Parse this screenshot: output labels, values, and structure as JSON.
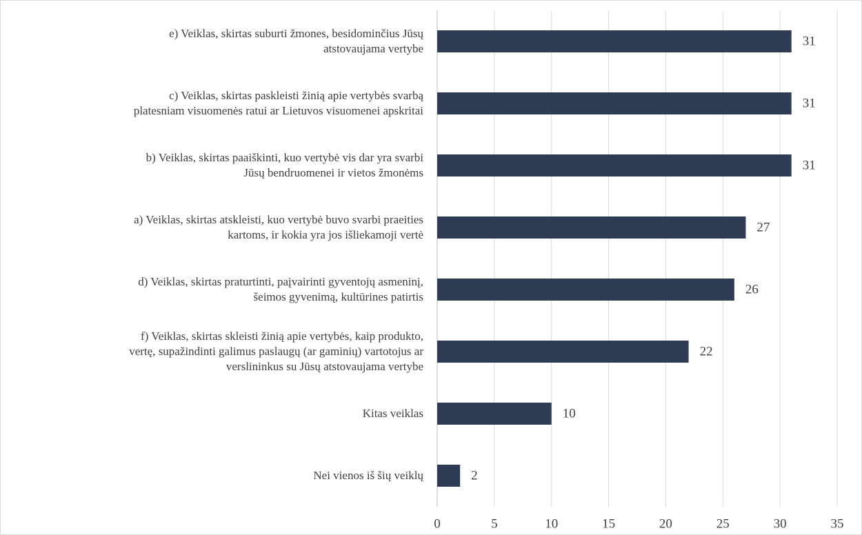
{
  "chart_data": {
    "type": "bar",
    "orientation": "horizontal",
    "categories": [
      "e) Veiklas, skirtas suburti žmones, besidominčius Jūsų\natstovaujama vertybe",
      "c) Veiklas, skirtas paskleisti žinią apie vertybės svarbą\nplatesniam visuomenės ratui ar Lietuvos visuomenei apskritai",
      "b) Veiklas, skirtas paaiškinti, kuo vertybė vis dar yra svarbi\nJūsų bendruomenei ir vietos žmonėms",
      "a) Veiklas, skirtas atskleisti, kuo vertybė buvo svarbi praeities\nkartoms, ir kokia yra jos išliekamoji vertė",
      "d) Veiklas, skirtas praturtinti, paįvairinti gyventojų asmeninį,\nšeimos gyvenimą, kultūrines patirtis",
      "f) Veiklas, skirtas skleisti žinią apie vertybės, kaip produkto,\nvertę, supažindinti galimus paslaugų (ar gaminių) vartotojus ar\nverslininkus su Jūsų atstovaujama vertybe",
      "Kitas veiklas",
      "Nei vienos iš šių veiklų"
    ],
    "values": [
      31,
      31,
      31,
      27,
      26,
      22,
      10,
      2
    ],
    "color": "#2e3b52",
    "xlim": [
      0,
      35
    ],
    "xticks": [
      0,
      5,
      10,
      15,
      20,
      25,
      30,
      35
    ],
    "grid": true
  }
}
